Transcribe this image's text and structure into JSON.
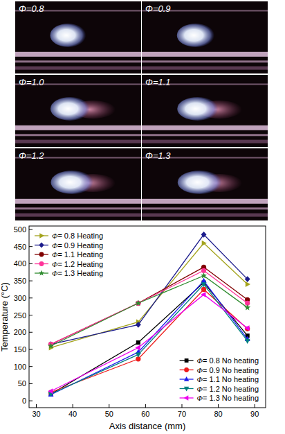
{
  "photo_panels": {
    "labels": [
      "Φ=0.8",
      "Φ=0.9",
      "Φ=1.0",
      "Φ=1.1",
      "Φ=1.2",
      "Φ=1.3"
    ]
  },
  "chart_data": {
    "type": "line",
    "x_label": "Axis distance (mm)",
    "y_label": "Temperature (°C)",
    "x": [
      34,
      58,
      76,
      88
    ],
    "xlim": [
      28,
      93
    ],
    "xticks": [
      30,
      40,
      50,
      60,
      70,
      80,
      90
    ],
    "ylim": [
      -20,
      510
    ],
    "yticks": [
      0,
      50,
      100,
      150,
      200,
      250,
      300,
      350,
      400,
      450,
      500
    ],
    "series": [
      {
        "name": "Φ= 0.8 Heating",
        "color": "#a3a31c",
        "marker": "triangle-right",
        "legend": "upper left",
        "values": [
          155,
          230,
          460,
          340
        ]
      },
      {
        "name": "Φ= 0.9 Heating",
        "color": "#1c1c8c",
        "marker": "diamond",
        "legend": "upper left",
        "values": [
          165,
          222,
          485,
          355
        ]
      },
      {
        "name": "Φ= 1.1 Heating",
        "color": "#800000",
        "marker": "circle",
        "legend": "upper left",
        "values": [
          165,
          285,
          390,
          295
        ]
      },
      {
        "name": "Φ= 1.2 Heating",
        "color": "#ff3399",
        "marker": "circle",
        "legend": "upper left",
        "values": [
          165,
          285,
          380,
          285
        ]
      },
      {
        "name": "Φ= 1.3 Heating",
        "color": "#2e8b2e",
        "marker": "star",
        "legend": "upper left",
        "values": [
          160,
          285,
          365,
          272
        ]
      },
      {
        "name": "Φ= 0.8 No heating",
        "color": "#000000",
        "marker": "square",
        "legend": "lower right",
        "values": [
          20,
          170,
          345,
          190
        ]
      },
      {
        "name": "Φ= 0.9 No heating",
        "color": "#ee1c1c",
        "marker": "circle",
        "legend": "lower right",
        "values": [
          25,
          122,
          325,
          210
        ]
      },
      {
        "name": "Φ= 1.1 No heating",
        "color": "#1c1cee",
        "marker": "triangle-up",
        "legend": "lower right",
        "values": [
          18,
          142,
          350,
          180
        ]
      },
      {
        "name": "Φ= 1.2 No heating",
        "color": "#008080",
        "marker": "triangle-down",
        "legend": "lower right",
        "values": [
          20,
          135,
          340,
          175
        ]
      },
      {
        "name": "Φ= 1.3 No heating",
        "color": "#ee00ee",
        "marker": "triangle-left",
        "legend": "lower right",
        "values": [
          28,
          155,
          310,
          212
        ]
      }
    ]
  }
}
